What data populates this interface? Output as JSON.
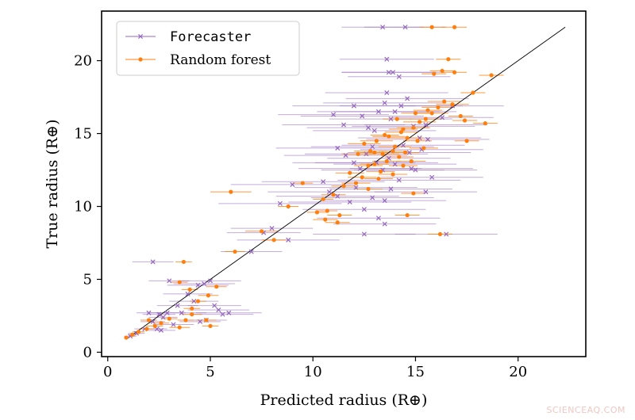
{
  "watermark": "SCIENCEAQ.COM",
  "chart_data": {
    "type": "scatter",
    "xlabel": "Predicted radius (R⊕)",
    "ylabel": "True radius (R⊕)",
    "xlim": [
      -0.3,
      23.3
    ],
    "ylim": [
      -0.3,
      23.4
    ],
    "xticks": [
      0,
      5,
      10,
      15,
      20
    ],
    "yticks": [
      0,
      5,
      10,
      15,
      20
    ],
    "grid": false,
    "legend_position": "top-left",
    "reference_line": {
      "from": [
        1,
        1
      ],
      "to": [
        22.3,
        22.3
      ],
      "color": "#000000"
    },
    "series": [
      {
        "name": "Forecaster",
        "marker": "x",
        "color": "#9467bd",
        "points": [
          [
            1.1,
            1.1,
            0.3
          ],
          [
            1.4,
            1.3,
            0.4
          ],
          [
            2.0,
            2.7,
            0.6
          ],
          [
            2.2,
            2.1,
            0.6
          ],
          [
            2.4,
            1.6,
            0.5
          ],
          [
            2.5,
            2.6,
            0.8
          ],
          [
            2.7,
            2.4,
            0.7
          ],
          [
            2.9,
            2.7,
            0.9
          ],
          [
            2.2,
            6.2,
            1.0
          ],
          [
            3.0,
            4.9,
            1.0
          ],
          [
            3.4,
            3.2,
            1.0
          ],
          [
            3.6,
            2.7,
            1.2
          ],
          [
            3.9,
            4.0,
            1.2
          ],
          [
            4.2,
            3.5,
            1.2
          ],
          [
            4.4,
            4.6,
            1.5
          ],
          [
            4.7,
            4.7,
            1.5
          ],
          [
            5.0,
            4.9,
            1.5
          ],
          [
            5.2,
            3.2,
            1.3
          ],
          [
            4.8,
            2.2,
            1.0
          ],
          [
            5.4,
            2.9,
            1.5
          ],
          [
            5.6,
            2.6,
            1.5
          ],
          [
            5.9,
            2.7,
            1.6
          ],
          [
            4.5,
            2.1,
            1.0
          ],
          [
            3.2,
            1.9,
            1.0
          ],
          [
            2.6,
            1.5,
            0.7
          ],
          [
            1.8,
            1.6,
            0.5
          ],
          [
            7.0,
            6.9,
            1.5
          ],
          [
            7.6,
            8.2,
            1.8
          ],
          [
            8.0,
            8.5,
            2.0
          ],
          [
            8.8,
            7.7,
            2.5
          ],
          [
            9.0,
            11.5,
            3.0
          ],
          [
            8.4,
            10.2,
            3.0
          ],
          [
            13.4,
            22.3,
            2.0
          ],
          [
            14.5,
            22.3,
            2.0
          ],
          [
            13.6,
            20.1,
            2.3
          ],
          [
            13.7,
            19.2,
            2.3
          ],
          [
            13.9,
            19.2,
            2.5
          ],
          [
            14.2,
            18.9,
            2.5
          ],
          [
            11.0,
            16.3,
            2.7
          ],
          [
            11.5,
            15.6,
            3.0
          ],
          [
            12.0,
            16.9,
            3.0
          ],
          [
            12.4,
            16.2,
            3.0
          ],
          [
            12.7,
            15.4,
            3.0
          ],
          [
            13.0,
            15.2,
            3.0
          ],
          [
            13.2,
            16.5,
            3.0
          ],
          [
            13.5,
            17.1,
            3.0
          ],
          [
            13.6,
            17.8,
            3.0
          ],
          [
            13.8,
            16.0,
            3.0
          ],
          [
            14.0,
            16.5,
            3.0
          ],
          [
            14.3,
            16.9,
            3.0
          ],
          [
            14.6,
            17.4,
            3.0
          ],
          [
            14.9,
            15.5,
            3.0
          ],
          [
            15.2,
            14.7,
            3.0
          ],
          [
            15.5,
            15.6,
            3.0
          ],
          [
            11.2,
            14.0,
            3.0
          ],
          [
            11.6,
            13.5,
            3.0
          ],
          [
            12.0,
            13.0,
            3.0
          ],
          [
            12.3,
            12.6,
            3.0
          ],
          [
            12.6,
            13.6,
            3.0
          ],
          [
            12.9,
            14.1,
            3.0
          ],
          [
            13.1,
            13.0,
            3.0
          ],
          [
            13.4,
            12.5,
            3.0
          ],
          [
            13.7,
            13.3,
            3.0
          ],
          [
            14.0,
            12.9,
            3.0
          ],
          [
            14.4,
            14.2,
            3.0
          ],
          [
            14.7,
            13.7,
            3.0
          ],
          [
            15.0,
            12.5,
            3.0
          ],
          [
            15.3,
            13.9,
            3.0
          ],
          [
            15.6,
            14.6,
            3.0
          ],
          [
            10.5,
            11.7,
            3.0
          ],
          [
            10.8,
            11.0,
            3.0
          ],
          [
            11.2,
            10.7,
            3.0
          ],
          [
            11.8,
            10.3,
            3.0
          ],
          [
            12.1,
            11.3,
            3.0
          ],
          [
            12.5,
            9.8,
            3.0
          ],
          [
            12.9,
            10.6,
            3.0
          ],
          [
            13.2,
            9.2,
            3.0
          ],
          [
            13.5,
            10.4,
            3.0
          ],
          [
            13.8,
            11.2,
            3.0
          ],
          [
            14.2,
            11.8,
            3.0
          ],
          [
            12.5,
            8.1,
            2.5
          ],
          [
            13.5,
            8.8,
            2.5
          ],
          [
            16.5,
            8.1,
            2.5
          ],
          [
            16.8,
            16.9,
            2.5
          ],
          [
            16.3,
            16.1,
            2.5
          ],
          [
            15.8,
            12.0,
            2.5
          ],
          [
            14.8,
            12.6,
            3.0
          ],
          [
            15.5,
            11.0,
            2.5
          ]
        ]
      },
      {
        "name": "Random forest",
        "marker": "dot",
        "color": "#ff7f0e",
        "points": [
          [
            0.9,
            1.0,
            0.1
          ],
          [
            1.2,
            1.2,
            0.2
          ],
          [
            1.5,
            1.4,
            0.3
          ],
          [
            1.9,
            1.6,
            0.3
          ],
          [
            2.3,
            1.8,
            0.4
          ],
          [
            2.6,
            2.0,
            0.4
          ],
          [
            3.0,
            2.3,
            0.4
          ],
          [
            3.5,
            1.7,
            0.5
          ],
          [
            3.8,
            2.2,
            0.4
          ],
          [
            4.1,
            2.6,
            0.5
          ],
          [
            4.8,
            2.2,
            0.5
          ],
          [
            5.0,
            1.8,
            0.4
          ],
          [
            3.7,
            6.2,
            0.4
          ],
          [
            3.5,
            4.8,
            0.4
          ],
          [
            4.0,
            4.3,
            0.4
          ],
          [
            4.4,
            3.5,
            0.4
          ],
          [
            4.9,
            3.9,
            0.5
          ],
          [
            5.3,
            4.5,
            0.5
          ],
          [
            4.1,
            3.0,
            0.4
          ],
          [
            2.0,
            2.2,
            0.4
          ],
          [
            6.0,
            11.0,
            1.0
          ],
          [
            6.2,
            6.9,
            0.5
          ],
          [
            7.5,
            8.3,
            0.8
          ],
          [
            8.1,
            7.7,
            0.6
          ],
          [
            8.8,
            10.0,
            0.5
          ],
          [
            9.5,
            11.6,
            0.5
          ],
          [
            10.2,
            9.6,
            0.5
          ],
          [
            10.5,
            10.5,
            0.5
          ],
          [
            10.7,
            9.7,
            0.5
          ],
          [
            11.0,
            10.8,
            0.6
          ],
          [
            11.3,
            9.4,
            0.6
          ],
          [
            11.5,
            11.4,
            0.6
          ],
          [
            11.8,
            12.3,
            0.7
          ],
          [
            12.1,
            11.6,
            0.7
          ],
          [
            12.4,
            12.0,
            0.7
          ],
          [
            12.7,
            11.2,
            0.7
          ],
          [
            13.0,
            12.9,
            0.7
          ],
          [
            13.3,
            12.4,
            0.7
          ],
          [
            13.6,
            13.1,
            0.7
          ],
          [
            13.9,
            12.2,
            0.7
          ],
          [
            14.2,
            13.4,
            0.7
          ],
          [
            14.5,
            13.7,
            0.7
          ],
          [
            14.8,
            13.1,
            0.7
          ],
          [
            15.1,
            14.5,
            0.7
          ],
          [
            15.4,
            14.0,
            0.7
          ],
          [
            12.2,
            13.6,
            0.8
          ],
          [
            12.5,
            14.3,
            0.8
          ],
          [
            12.8,
            13.8,
            0.8
          ],
          [
            13.1,
            14.5,
            0.8
          ],
          [
            13.4,
            13.6,
            0.8
          ],
          [
            13.7,
            14.8,
            0.8
          ],
          [
            14.0,
            14.1,
            0.8
          ],
          [
            14.3,
            15.1,
            0.8
          ],
          [
            14.6,
            14.7,
            0.8
          ],
          [
            14.9,
            15.4,
            0.8
          ],
          [
            15.2,
            15.8,
            0.8
          ],
          [
            15.5,
            16.0,
            0.8
          ],
          [
            15.8,
            16.4,
            0.8
          ],
          [
            16.1,
            16.8,
            0.8
          ],
          [
            16.4,
            17.2,
            0.8
          ],
          [
            16.8,
            17.0,
            0.8
          ],
          [
            17.2,
            16.2,
            0.6
          ],
          [
            17.5,
            14.5,
            0.6
          ],
          [
            17.8,
            17.8,
            0.6
          ],
          [
            18.4,
            15.7,
            0.6
          ],
          [
            18.7,
            19.0,
            0.6
          ],
          [
            17.4,
            15.9,
            0.6
          ],
          [
            16.6,
            20.1,
            0.6
          ],
          [
            16.9,
            19.2,
            0.6
          ],
          [
            16.3,
            19.3,
            0.6
          ],
          [
            15.9,
            19.1,
            0.6
          ],
          [
            15.8,
            22.3,
            0.6
          ],
          [
            16.9,
            22.3,
            0.6
          ],
          [
            16.2,
            8.1,
            0.6
          ],
          [
            14.6,
            9.4,
            0.6
          ],
          [
            14.9,
            10.9,
            0.6
          ],
          [
            11.2,
            8.9,
            0.6
          ],
          [
            10.6,
            9.1,
            0.6
          ],
          [
            12.7,
            12.8,
            0.7
          ],
          [
            13.0,
            13.7,
            0.7
          ],
          [
            13.5,
            14.9,
            0.7
          ],
          [
            14.4,
            15.3,
            0.7
          ],
          [
            15.0,
            16.4,
            0.7
          ],
          [
            15.6,
            16.6,
            0.7
          ],
          [
            14.1,
            16.0,
            0.7
          ],
          [
            14.4,
            12.8,
            0.7
          ],
          [
            13.9,
            13.8,
            0.7
          ],
          [
            13.2,
            11.9,
            0.7
          ]
        ]
      }
    ]
  }
}
